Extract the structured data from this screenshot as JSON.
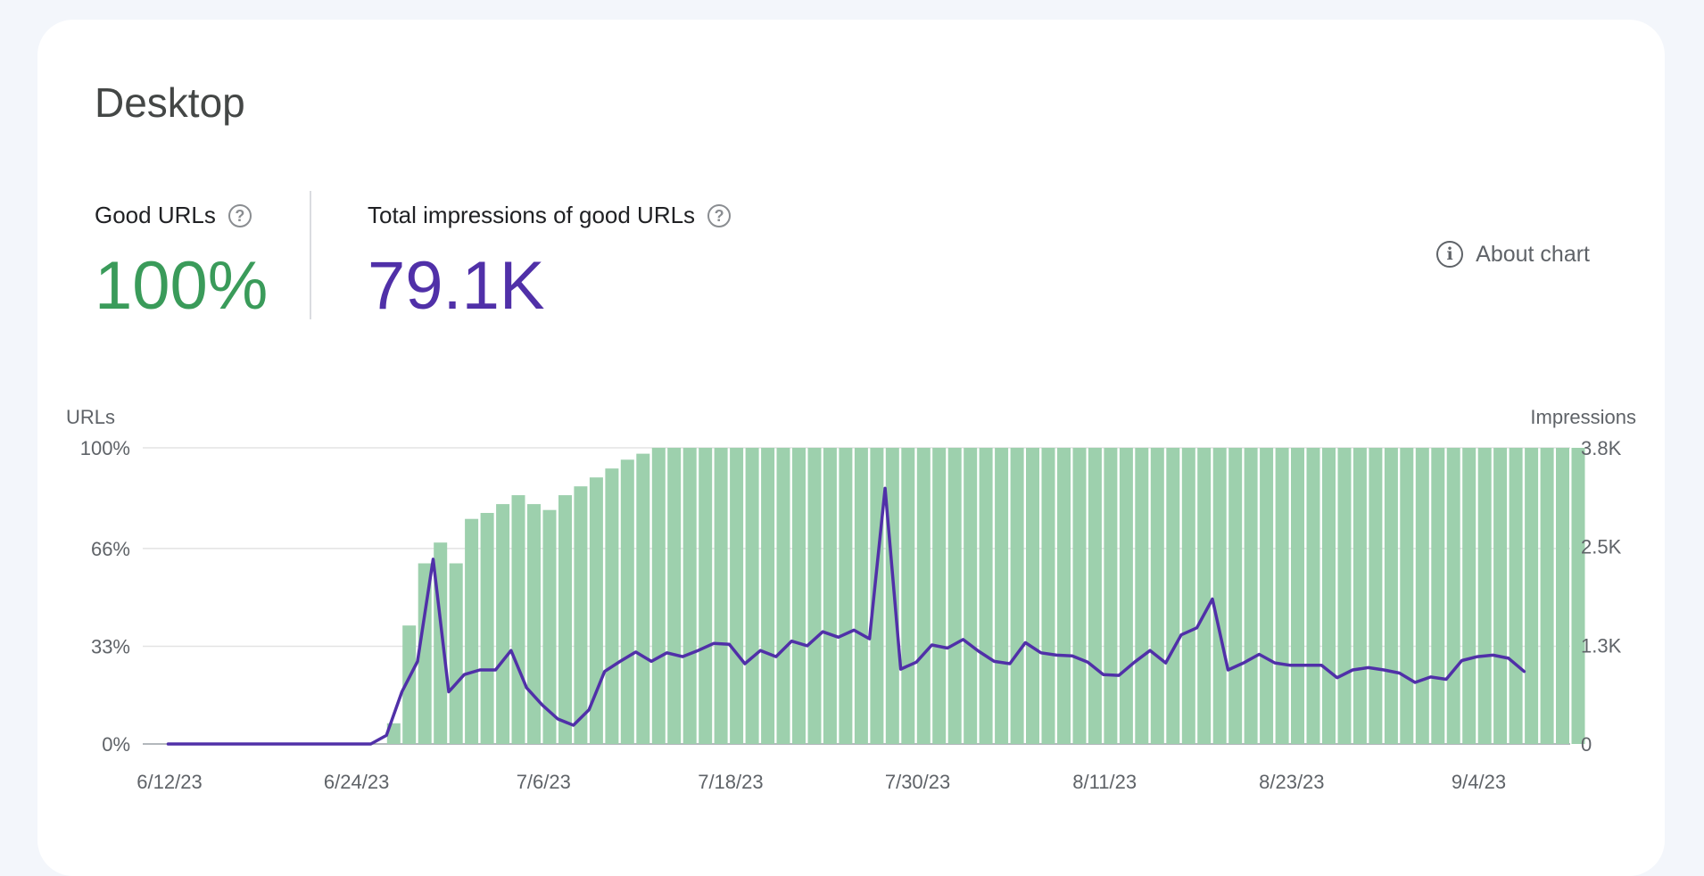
{
  "card": {
    "title": "Desktop",
    "about_label": "About chart",
    "about_icon": "info-icon"
  },
  "metrics": [
    {
      "label": "Good URLs",
      "value": "100%",
      "help_icon": "help-icon",
      "color": "#3a9b5a"
    },
    {
      "label": "Total impressions of good URLs",
      "value": "79.1K",
      "help_icon": "help-icon",
      "color": "#5030a8"
    }
  ],
  "chart_data": {
    "type": "bar+line",
    "left_axis_title": "URLs",
    "right_axis_title": "Impressions",
    "left_ticks": [
      "0%",
      "33%",
      "66%",
      "100%"
    ],
    "right_ticks": [
      "0",
      "1.3K",
      "2.5K",
      "3.8K"
    ],
    "left_tick_values": [
      0,
      33,
      66,
      100
    ],
    "right_tick_values": [
      0,
      1267,
      2533,
      3800
    ],
    "ylim_left": [
      0,
      100
    ],
    "ylim_right": [
      0,
      3800
    ],
    "x_tick_labels": [
      "6/12/23",
      "6/24/23",
      "7/6/23",
      "7/18/23",
      "7/30/23",
      "8/11/23",
      "8/23/23",
      "9/4/23"
    ],
    "x_tick_day_index": [
      0,
      12,
      24,
      36,
      48,
      60,
      72,
      84
    ],
    "bar_color": "#9dd0ad",
    "line_color": "#5030a8",
    "series": [
      {
        "name": "",
        "type": "bar",
        "axis": "left",
        "values": [
          0,
          0,
          0,
          0,
          0,
          0,
          0,
          0,
          0,
          0,
          0,
          0,
          0,
          0,
          7,
          40,
          61,
          68,
          61,
          76,
          78,
          81,
          84,
          81,
          79,
          84,
          87,
          90,
          93,
          96,
          98,
          100,
          100,
          100,
          100,
          100,
          100,
          100,
          100,
          100,
          100,
          100,
          100,
          100,
          100,
          100,
          100,
          100,
          100,
          100,
          100,
          100,
          100,
          100,
          100,
          100,
          100,
          100,
          100,
          100,
          100,
          100,
          100,
          100,
          100,
          100,
          100,
          100,
          100,
          100,
          100,
          100,
          100,
          100,
          100,
          100,
          100,
          100,
          100,
          100,
          100,
          100,
          100,
          100,
          100,
          100,
          100,
          100,
          100,
          100,
          100
        ]
      },
      {
        "name": "",
        "type": "line",
        "axis": "right",
        "values": [
          0,
          0,
          0,
          0,
          0,
          0,
          0,
          0,
          0,
          0,
          0,
          0,
          0,
          0,
          110,
          670,
          1060,
          2370,
          670,
          890,
          950,
          950,
          1200,
          720,
          500,
          320,
          240,
          440,
          930,
          1060,
          1180,
          1060,
          1170,
          1120,
          1200,
          1290,
          1280,
          1030,
          1200,
          1120,
          1320,
          1260,
          1440,
          1370,
          1460,
          1350,
          3280,
          960,
          1050,
          1270,
          1230,
          1340,
          1190,
          1060,
          1030,
          1300,
          1170,
          1140,
          1130,
          1050,
          890,
          880,
          1050,
          1200,
          1040,
          1400,
          1490,
          1860,
          950,
          1040,
          1150,
          1040,
          1010,
          1010,
          1010,
          850,
          950,
          980,
          950,
          910,
          790,
          860,
          830,
          1070,
          1120,
          1140,
          1100,
          930
        ]
      }
    ]
  }
}
